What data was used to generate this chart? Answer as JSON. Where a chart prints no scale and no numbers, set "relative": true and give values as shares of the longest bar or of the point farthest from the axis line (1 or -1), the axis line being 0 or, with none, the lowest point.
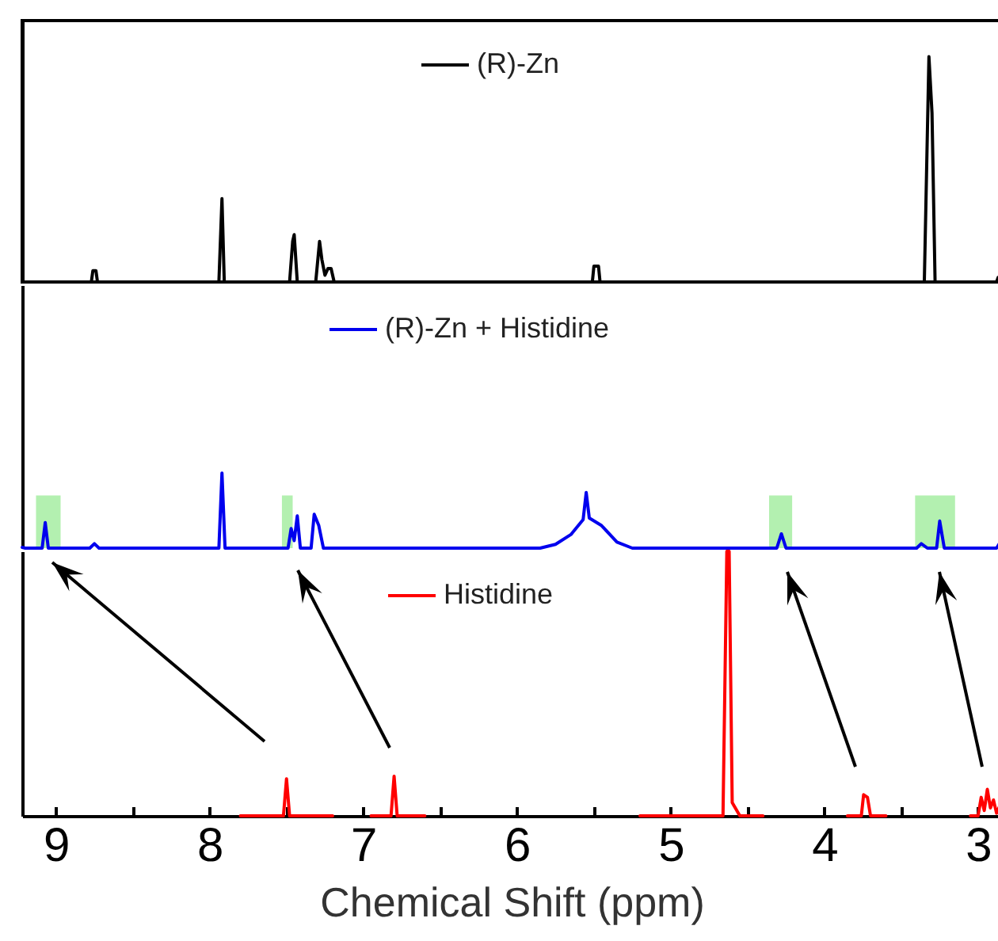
{
  "chart_data": [
    {
      "type": "line",
      "relative": true,
      "xlim": [
        9.22,
        2.85
      ],
      "tick_labels": false,
      "legend": "top",
      "series": [
        {
          "name": "(R)-Zn",
          "color": "#000000",
          "x": [
            9.22,
            8.77,
            8.76,
            8.74,
            8.73,
            7.94,
            7.92,
            7.905,
            7.48,
            7.46,
            7.45,
            7.43,
            7.31,
            7.285,
            7.27,
            7.25,
            7.23,
            7.21,
            7.19,
            5.51,
            5.5,
            5.47,
            5.46,
            3.35,
            3.32,
            3.3,
            3.28,
            2.88,
            2.87,
            2.85
          ],
          "values": [
            0,
            0,
            0.05,
            0.05,
            0,
            0,
            0.37,
            0,
            0,
            0.18,
            0.21,
            0,
            0,
            0.18,
            0.1,
            0.03,
            0.06,
            0.06,
            0,
            0,
            0.07,
            0.07,
            0,
            0,
            1,
            0.75,
            0,
            0,
            0.02,
            0.02
          ]
        }
      ]
    },
    {
      "type": "line",
      "relative": true,
      "xlim": [
        9.22,
        2.85
      ],
      "tick_labels": false,
      "legend": "top",
      "bands": [
        {
          "axis": "x",
          "from": 9.13,
          "to": 8.97,
          "color": "#b3f0b0"
        },
        {
          "axis": "x",
          "from": 7.53,
          "to": 7.46,
          "color": "#b3f0b0"
        },
        {
          "axis": "x",
          "from": 4.36,
          "to": 4.21,
          "color": "#b3f0b0"
        },
        {
          "axis": "x",
          "from": 3.41,
          "to": 3.15,
          "color": "#b3f0b0"
        }
      ],
      "series": [
        {
          "name": "(R)-Zn + Histidine",
          "color": "#0000ee",
          "x": [
            9.22,
            9.2,
            9.09,
            9.07,
            9.05,
            8.78,
            8.75,
            8.72,
            7.94,
            7.92,
            7.9,
            7.49,
            7.47,
            7.45,
            7.43,
            7.41,
            7.34,
            7.32,
            7.29,
            7.26,
            5.85,
            5.75,
            5.65,
            5.57,
            5.55,
            5.53,
            5.45,
            5.35,
            5.25,
            4.31,
            4.28,
            4.25,
            3.4,
            3.37,
            3.33,
            3.27,
            3.25,
            3.22,
            2.88,
            2.85
          ],
          "values": [
            0.01,
            0,
            0,
            0.34,
            0,
            0,
            0.06,
            0,
            0,
            1,
            0,
            0,
            0.26,
            0.1,
            0.43,
            0,
            0,
            0.45,
            0.3,
            0,
            0,
            0.05,
            0.18,
            0.38,
            0.74,
            0.4,
            0.3,
            0.08,
            0,
            0,
            0.19,
            0,
            0,
            0.06,
            0,
            0,
            0.36,
            0,
            0,
            0.1
          ]
        }
      ]
    },
    {
      "type": "line",
      "relative": true,
      "xlim": [
        9.22,
        2.85
      ],
      "xlabel": "Chemical Shift (ppm)",
      "tick_labels": "x",
      "legend": "top",
      "xticks": [
        9,
        {
          "value": 8.5,
          "label": null
        },
        8,
        {
          "value": 7.5,
          "label": null
        },
        7,
        {
          "value": 6.5,
          "label": null
        },
        6,
        {
          "value": 5.5,
          "label": null
        },
        5,
        {
          "value": 4.5,
          "label": null
        },
        4,
        {
          "value": 3.5,
          "label": null
        },
        3
      ],
      "series": [
        {
          "name": "Histidine",
          "color": "#ff0000",
          "x": [
            7.8,
            7.52,
            7.5,
            7.48,
            7.2,
            7.1,
            6.95,
            6.82,
            6.8,
            6.78,
            6.6,
            6.5,
            5.2,
            4.66,
            4.635,
            4.62,
            4.6,
            4.55,
            4.4,
            4.3,
            3.85,
            3.76,
            3.745,
            3.72,
            3.7,
            3.6,
            3.5,
            3.05,
            3.0,
            2.98,
            2.96,
            2.94,
            2.92,
            2.9,
            2.88,
            2.85
          ],
          "values": [
            0,
            0,
            0.14,
            0,
            0,
            null,
            0,
            0,
            0.15,
            0,
            0,
            null,
            0,
            0,
            1,
            1,
            0.05,
            0,
            0,
            null,
            0,
            0,
            0.08,
            0.07,
            0,
            0,
            null,
            0,
            0,
            0.07,
            0.02,
            0.1,
            0.03,
            0.06,
            0.01,
            0.05
          ]
        }
      ]
    }
  ]
}
